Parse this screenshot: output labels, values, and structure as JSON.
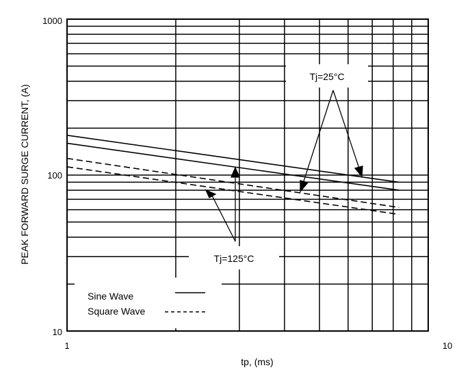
{
  "chart_data": {
    "type": "line",
    "title": "",
    "xlabel": "tp, (ms)",
    "ylabel": "PEAK FORWARD SURGE CURRENT, (A)",
    "xscale": "log",
    "yscale": "log",
    "xlim": [
      1,
      10
    ],
    "ylim": [
      10,
      1000
    ],
    "grid": true,
    "x_ticks": [
      "1",
      "10"
    ],
    "y_ticks": [
      "10",
      "100",
      "1000"
    ],
    "series": [
      {
        "wave": "sine",
        "x": [
          1,
          8.3
        ],
        "y": [
          180,
          90
        ]
      },
      {
        "wave": "sine",
        "x": [
          1,
          8.3
        ],
        "y": [
          160,
          80
        ]
      },
      {
        "wave": "square",
        "x": [
          1,
          8.3
        ],
        "y": [
          128,
          62
        ]
      },
      {
        "wave": "square",
        "x": [
          1,
          8.3
        ],
        "y": [
          113,
          56
        ]
      }
    ],
    "annotations": [
      {
        "text": "Tj=25°C"
      },
      {
        "text": "Tj=125°C"
      }
    ],
    "legend": {
      "position": "bottom-left",
      "items": [
        {
          "label": "Sine Wave",
          "style": "solid"
        },
        {
          "label": "Square Wave",
          "style": "dashed"
        }
      ]
    }
  }
}
